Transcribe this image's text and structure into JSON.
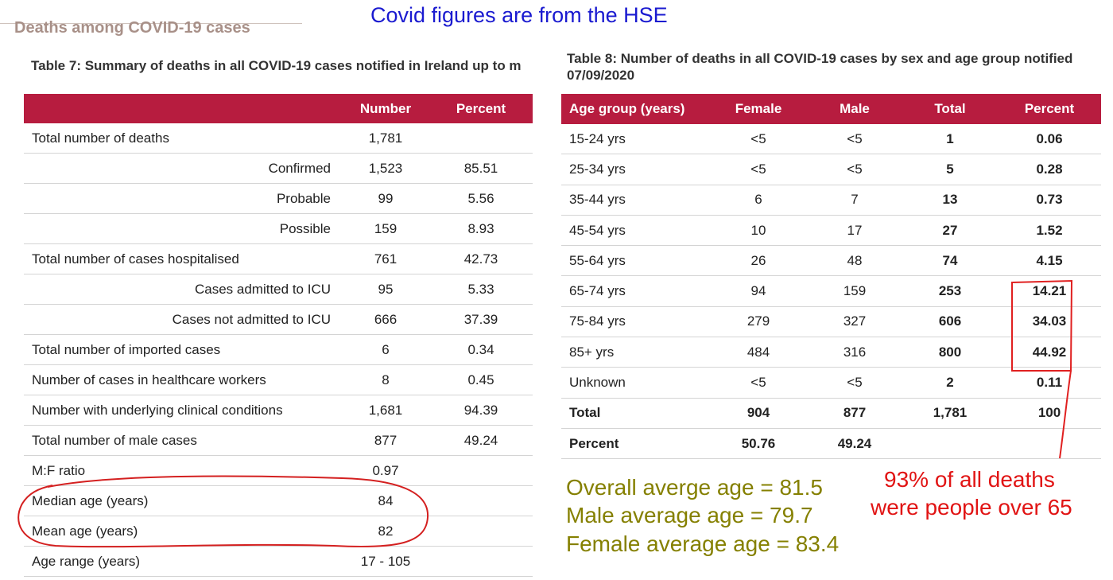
{
  "headline": "Covid figures are from the HSE",
  "section_title": "Deaths among COVID-19 cases",
  "table7": {
    "caption": "Table 7: Summary of deaths in all COVID-19 cases notified in Ireland up to m",
    "headers": [
      "",
      "Number",
      "Percent"
    ],
    "rows": [
      {
        "label": "Total number of deaths",
        "number": "1,781",
        "percent": "",
        "sub": false
      },
      {
        "label": "Confirmed",
        "number": "1,523",
        "percent": "85.51",
        "sub": true
      },
      {
        "label": "Probable",
        "number": "99",
        "percent": "5.56",
        "sub": true
      },
      {
        "label": "Possible",
        "number": "159",
        "percent": "8.93",
        "sub": true
      },
      {
        "label": "Total number of cases hospitalised",
        "number": "761",
        "percent": "42.73",
        "sub": false
      },
      {
        "label": "Cases admitted to ICU",
        "number": "95",
        "percent": "5.33",
        "sub": true
      },
      {
        "label": "Cases not admitted to ICU",
        "number": "666",
        "percent": "37.39",
        "sub": true
      },
      {
        "label": "Total number of imported cases",
        "number": "6",
        "percent": "0.34",
        "sub": false
      },
      {
        "label": "Number of cases in healthcare workers",
        "number": "8",
        "percent": "0.45",
        "sub": false
      },
      {
        "label": "Number with underlying clinical conditions",
        "number": "1,681",
        "percent": "94.39",
        "sub": false
      },
      {
        "label": "Total number of male cases",
        "number": "877",
        "percent": "49.24",
        "sub": false
      },
      {
        "label": "M:F ratio",
        "number": "0.97",
        "percent": "",
        "sub": false
      },
      {
        "label": "Median age (years)",
        "number": "84",
        "percent": "",
        "sub": false
      },
      {
        "label": "Mean age (years)",
        "number": "82",
        "percent": "",
        "sub": false
      },
      {
        "label": "Age range (years)",
        "number": "17 - 105",
        "percent": "",
        "sub": false
      }
    ]
  },
  "table8": {
    "caption_line1": "Table 8: Number of deaths in all COVID-19 cases by sex and age group notified",
    "caption_line2": "07/09/2020",
    "headers": [
      "Age group (years)",
      "Female",
      "Male",
      "Total",
      "Percent"
    ],
    "rows": [
      [
        "15-24 yrs",
        "<5",
        "<5",
        "1",
        "0.06"
      ],
      [
        "25-34 yrs",
        "<5",
        "<5",
        "5",
        "0.28"
      ],
      [
        "35-44 yrs",
        "6",
        "7",
        "13",
        "0.73"
      ],
      [
        "45-54 yrs",
        "10",
        "17",
        "27",
        "1.52"
      ],
      [
        "55-64 yrs",
        "26",
        "48",
        "74",
        "4.15"
      ],
      [
        "65-74 yrs",
        "94",
        "159",
        "253",
        "14.21"
      ],
      [
        "75-84 yrs",
        "279",
        "327",
        "606",
        "34.03"
      ],
      [
        "85+ yrs",
        "484",
        "316",
        "800",
        "44.92"
      ],
      [
        "Unknown",
        "<5",
        "<5",
        "2",
        "0.11"
      ],
      [
        "Total",
        "904",
        "877",
        "1,781",
        "100"
      ],
      [
        "Percent",
        "50.76",
        "49.24",
        "",
        ""
      ]
    ]
  },
  "notes": {
    "overall_age": "Overall averge age = 81.5",
    "male_age": "Male average age   = 79.7",
    "female_age": "Female average age = 83.4",
    "over65_line1": "93% of all deaths",
    "over65_line2": "were people over 65"
  },
  "colors": {
    "header_bg": "#b71c3f",
    "headline": "#1a1ad0",
    "olive_note": "#858000",
    "red_note": "#e11414"
  }
}
